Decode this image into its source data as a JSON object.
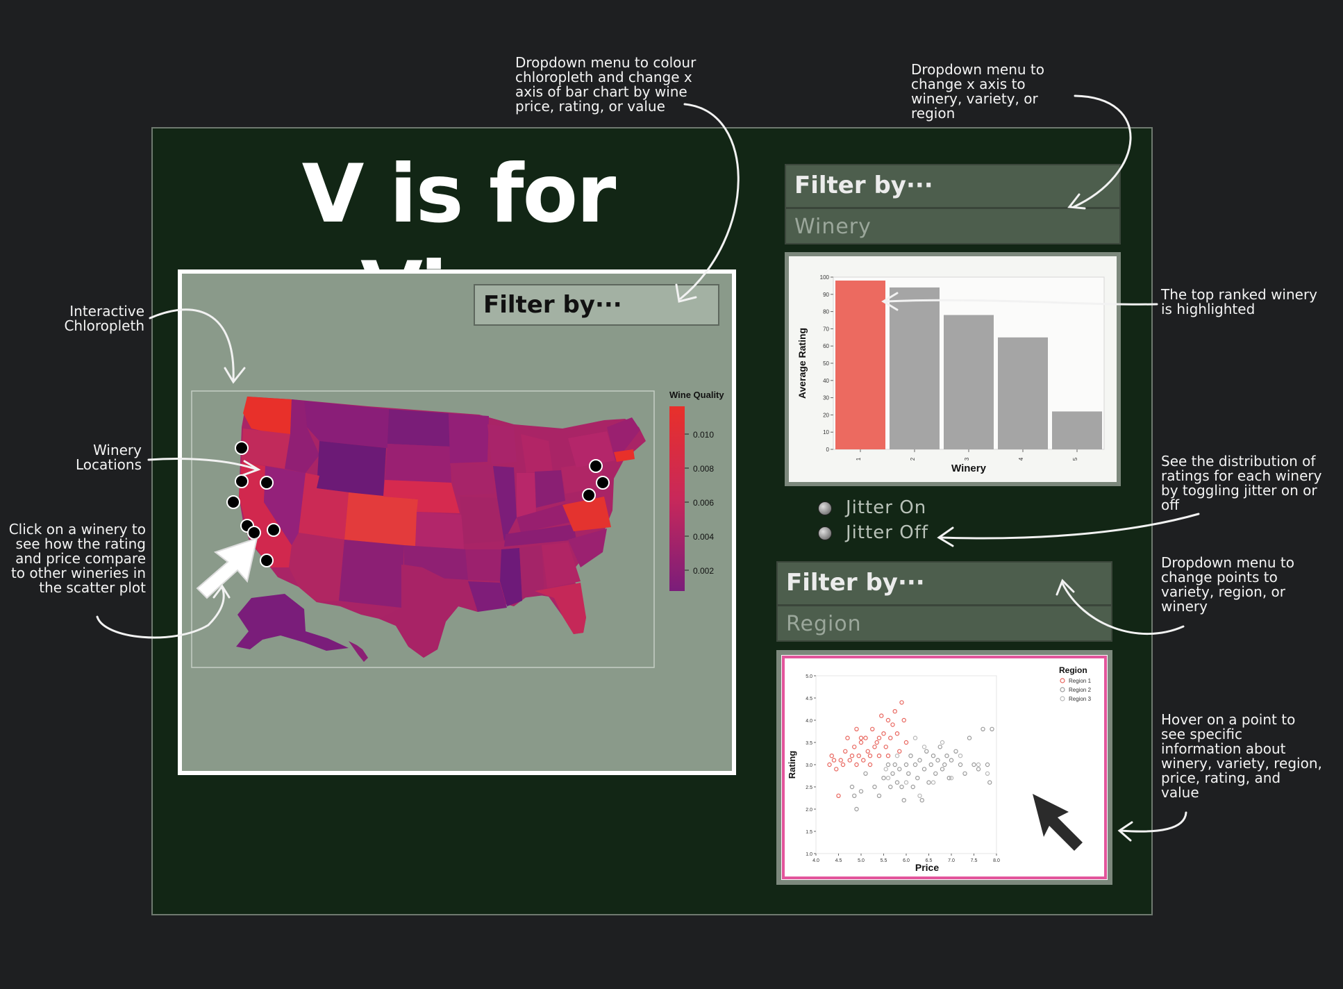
{
  "title": "V is for Vino",
  "map_filter": {
    "label": "Filter by···"
  },
  "bar_dropdown": {
    "label": "Filter by···",
    "value": "Winery"
  },
  "scatter_dropdown": {
    "label": "Filter by···",
    "value": "Region"
  },
  "jitter": {
    "on_label": "Jitter On",
    "off_label": "Jitter Off"
  },
  "annotations": {
    "chloropleth": "Interactive\nChloropleth",
    "winery_locations": "Winery\nLocations",
    "click_winery": "Click on a winery to\nsee  how the rating\nand price compare\nto other wineries in\nthe scatter plot",
    "dropdown_colour": "Dropdown menu to colour\nchloropleth and change x\naxis of bar chart by wine\nprice, rating, or value",
    "dropdown_xaxis": "Dropdown menu to\nchange x axis to\nwinery, variety, or\nregion",
    "top_ranked": "The top ranked winery\nis highlighted",
    "distribution": "See the distribution of\nratings for each winery\nby toggling jitter on or\noff",
    "dropdown_points": "Dropdown menu to\nchange points  to\nvariety, region, or\nwinery",
    "hover": "Hover on a point to\nsee specific\ninformation about\nwinery, variety, region,\nprice, rating, and\nvalue"
  },
  "map_legend": {
    "title": "Wine Quality",
    "ticks": [
      "0.010",
      "0.008",
      "0.006",
      "0.004",
      "0.002"
    ],
    "colors": {
      "high": "#e8302a",
      "mid": "#c8285a",
      "low": "#7a1d7a"
    }
  },
  "chart_data": [
    {
      "type": "bar",
      "categories": [
        "1",
        "2",
        "3",
        "4",
        "5"
      ],
      "values": [
        98,
        94,
        78,
        65,
        22
      ],
      "highlight_index": 0,
      "xlabel": "Winery",
      "ylabel": "Average Rating",
      "ylim": [
        0,
        100
      ],
      "yticks": [
        0,
        10,
        20,
        30,
        40,
        50,
        60,
        70,
        80,
        90,
        100
      ],
      "colors": {
        "highlight": "#ec6a60",
        "default": "#a5a5a5"
      }
    },
    {
      "type": "scatter",
      "xlabel": "Price",
      "ylabel": "Rating",
      "xlim": [
        4.0,
        8.0
      ],
      "ylim": [
        1.0,
        5.0
      ],
      "xticks": [
        "4.0",
        "4.5",
        "5.0",
        "5.5",
        "6.0",
        "6.5",
        "7.0",
        "7.5",
        "8.0"
      ],
      "yticks": [
        "1.0",
        "1.5",
        "2.0",
        "2.5",
        "3.0",
        "3.5",
        "4.0",
        "4.5",
        "5.0"
      ],
      "legend": {
        "title": "Region",
        "placement": "top-right"
      },
      "series": [
        {
          "name": "Region 1",
          "color": "#e8655d",
          "points": [
            [
              4.3,
              3.0
            ],
            [
              4.35,
              3.2
            ],
            [
              4.4,
              3.1
            ],
            [
              4.45,
              2.9
            ],
            [
              4.5,
              2.3
            ],
            [
              4.55,
              3.1
            ],
            [
              4.6,
              3.0
            ],
            [
              4.65,
              3.3
            ],
            [
              4.7,
              3.6
            ],
            [
              4.75,
              3.1
            ],
            [
              4.8,
              3.2
            ],
            [
              4.85,
              3.4
            ],
            [
              4.9,
              3.0
            ],
            [
              4.95,
              3.2
            ],
            [
              5.0,
              3.5
            ],
            [
              5.05,
              3.1
            ],
            [
              5.1,
              3.6
            ],
            [
              5.15,
              3.3
            ],
            [
              5.2,
              3.2
            ],
            [
              5.25,
              3.8
            ],
            [
              5.3,
              3.4
            ],
            [
              5.35,
              3.5
            ],
            [
              5.4,
              3.2
            ],
            [
              5.45,
              4.1
            ],
            [
              5.5,
              3.7
            ],
            [
              5.55,
              3.4
            ],
            [
              5.6,
              3.2
            ],
            [
              5.65,
              3.6
            ],
            [
              5.7,
              3.9
            ],
            [
              5.75,
              4.2
            ],
            [
              5.8,
              3.7
            ],
            [
              5.85,
              3.3
            ],
            [
              5.9,
              4.4
            ],
            [
              5.95,
              4.0
            ],
            [
              6.0,
              3.5
            ],
            [
              5.2,
              3.0
            ],
            [
              5.0,
              3.6
            ],
            [
              5.4,
              3.6
            ],
            [
              4.9,
              3.8
            ],
            [
              5.6,
              4.0
            ]
          ]
        },
        {
          "name": "Region 2",
          "color": "#9a9a9a",
          "points": [
            [
              4.8,
              2.5
            ],
            [
              4.85,
              2.3
            ],
            [
              4.9,
              2.0
            ],
            [
              5.0,
              2.4
            ],
            [
              5.1,
              2.8
            ],
            [
              5.3,
              2.5
            ],
            [
              5.4,
              2.3
            ],
            [
              5.5,
              2.7
            ],
            [
              5.6,
              3.0
            ],
            [
              5.65,
              2.5
            ],
            [
              5.7,
              2.8
            ],
            [
              5.75,
              3.0
            ],
            [
              5.8,
              2.6
            ],
            [
              5.85,
              2.9
            ],
            [
              5.9,
              2.5
            ],
            [
              5.95,
              2.2
            ],
            [
              6.0,
              3.0
            ],
            [
              6.05,
              2.8
            ],
            [
              6.1,
              3.2
            ],
            [
              6.15,
              2.5
            ],
            [
              6.2,
              3.0
            ],
            [
              6.25,
              2.7
            ],
            [
              6.3,
              3.1
            ],
            [
              6.35,
              2.2
            ],
            [
              6.4,
              2.9
            ],
            [
              6.45,
              3.3
            ],
            [
              6.5,
              2.6
            ],
            [
              6.55,
              3.0
            ],
            [
              6.6,
              3.2
            ],
            [
              6.65,
              2.8
            ],
            [
              6.7,
              3.1
            ],
            [
              6.75,
              3.4
            ],
            [
              6.8,
              2.9
            ],
            [
              6.85,
              3.0
            ],
            [
              6.9,
              3.2
            ],
            [
              6.95,
              2.7
            ],
            [
              7.0,
              3.1
            ],
            [
              7.1,
              3.3
            ],
            [
              7.2,
              3.0
            ],
            [
              7.3,
              2.8
            ],
            [
              7.4,
              3.6
            ],
            [
              7.5,
              3.0
            ],
            [
              7.6,
              2.9
            ],
            [
              7.7,
              3.8
            ],
            [
              7.8,
              3.0
            ],
            [
              7.85,
              2.6
            ],
            [
              7.9,
              3.8
            ]
          ]
        },
        {
          "name": "Region 3",
          "color": "#b7b7b7",
          "points": [
            [
              5.55,
              2.9
            ],
            [
              5.6,
              2.7
            ],
            [
              5.8,
              3.2
            ],
            [
              6.0,
              2.6
            ],
            [
              6.2,
              3.6
            ],
            [
              6.3,
              2.3
            ],
            [
              6.4,
              3.4
            ],
            [
              6.6,
              2.6
            ],
            [
              6.8,
              3.5
            ],
            [
              7.0,
              2.7
            ],
            [
              7.2,
              3.2
            ],
            [
              7.6,
              3.0
            ],
            [
              7.8,
              2.8
            ]
          ]
        }
      ]
    }
  ]
}
